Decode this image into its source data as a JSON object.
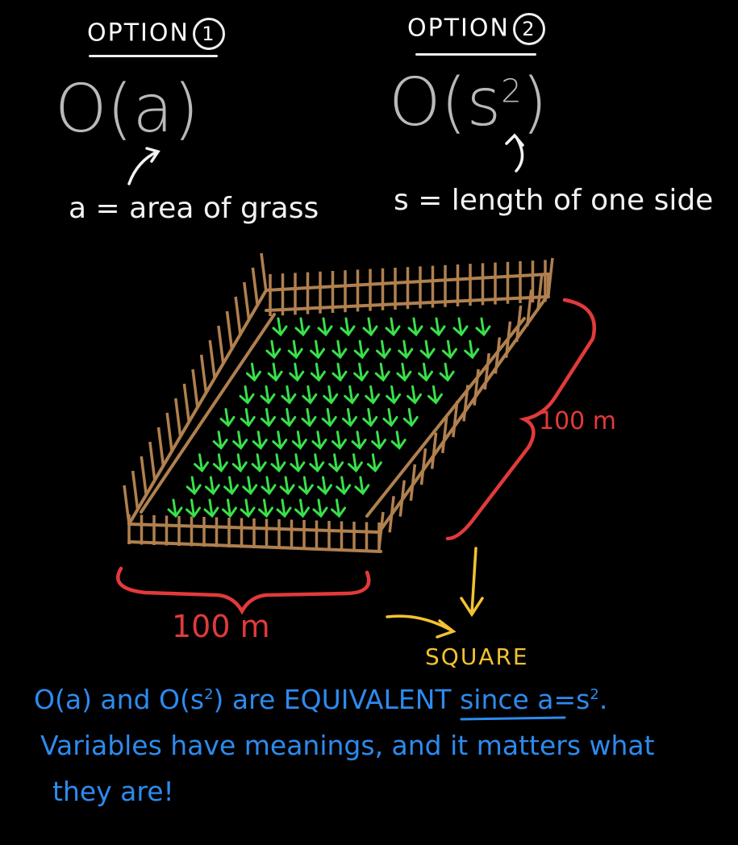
{
  "option1": {
    "title": "OPTION",
    "number": "1",
    "notation": "O(a)",
    "definition": "a = area of grass"
  },
  "option2": {
    "title": "OPTION",
    "number": "2",
    "notation_base": "O(s",
    "notation_exp": "2",
    "notation_close": ")",
    "definition": "s = length of one side"
  },
  "labels": {
    "bottom_length": "100 m",
    "right_length": "100 m",
    "square": "SQUARE"
  },
  "conclusion": {
    "line1_a": "O(a) and O(s",
    "line1_b": "2",
    "line1_c": ") are ",
    "line1_emph": "EQUIVALENT",
    "line1_d": " since a=s",
    "line1_e": "2",
    "line1_f": ".",
    "line2": "Variables have meanings, and it matters what",
    "line3": "they are!"
  },
  "colors": {
    "fence": "#b0804f",
    "grass": "#39e04a",
    "brace": "#e23a3a",
    "arrow": "#f2c230",
    "text_blue": "#2d8bef",
    "notation": "#b9b9b9"
  }
}
